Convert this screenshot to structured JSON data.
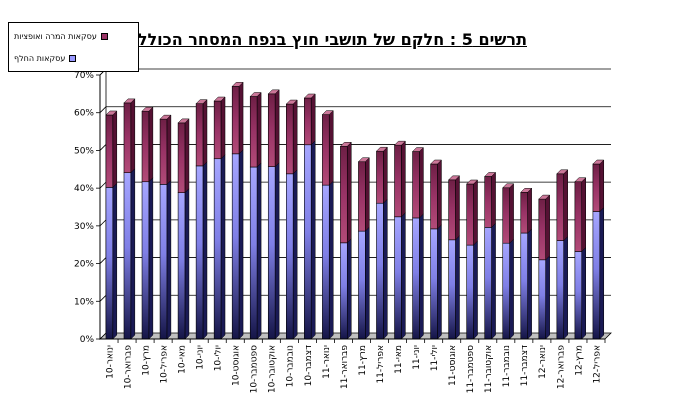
{
  "chart_data": {
    "type": "bar",
    "stacked": true,
    "title": "תרשים 5 : חלקם של תושבי חוץ בנפח המסחר הכולל",
    "ylim": [
      0,
      70
    ],
    "yticks": [
      "0%",
      "10%",
      "20%",
      "30%",
      "40%",
      "50%",
      "60%",
      "70%"
    ],
    "grid": true,
    "legend_position": "top-left",
    "categories": [
      "ינואר-10",
      "פברואר-10",
      "מרץ-10",
      "אפריל-10",
      "מאי-10",
      "יוני-10",
      "יולי-10",
      "אוגוסט-10",
      "ספטמבר-10",
      "אוקטובר-10",
      "נובמבר-10",
      "דצמבר-10",
      "ינואר-11",
      "פברואר-11",
      "מרץ-11",
      "אפריל-11",
      "מאי-11",
      "יוני-11",
      "יולי-11",
      "אוגוסט-11",
      "ספטמבר-11",
      "אוקטובר-11",
      "נובמבר-11",
      "דצמבר-11",
      "ינואר-12",
      "פברואר-12",
      "מרץ-12",
      "אפריל-12"
    ],
    "series": [
      {
        "name": "עסקאות החלף",
        "color": "#9999ff",
        "values": [
          40.2,
          44.1,
          41.7,
          41.0,
          38.8,
          45.9,
          47.8,
          49.1,
          45.6,
          45.7,
          43.8,
          51.5,
          40.8,
          25.5,
          28.6,
          36.0,
          32.4,
          32.1,
          29.2,
          26.3,
          24.9,
          29.6,
          25.4,
          28.1,
          21.0,
          26.1,
          23.2,
          33.8
        ]
      },
      {
        "name": "עסקאות המרה ואופציות",
        "color": "#993366",
        "values": [
          19.2,
          18.5,
          18.7,
          17.3,
          18.5,
          16.5,
          15.3,
          17.9,
          18.7,
          19.3,
          18.5,
          12.4,
          18.7,
          25.6,
          18.4,
          13.8,
          19.0,
          17.6,
          17.2,
          15.9,
          16.2,
          13.5,
          14.7,
          10.8,
          16.1,
          17.7,
          18.5,
          12.6
        ]
      }
    ]
  }
}
